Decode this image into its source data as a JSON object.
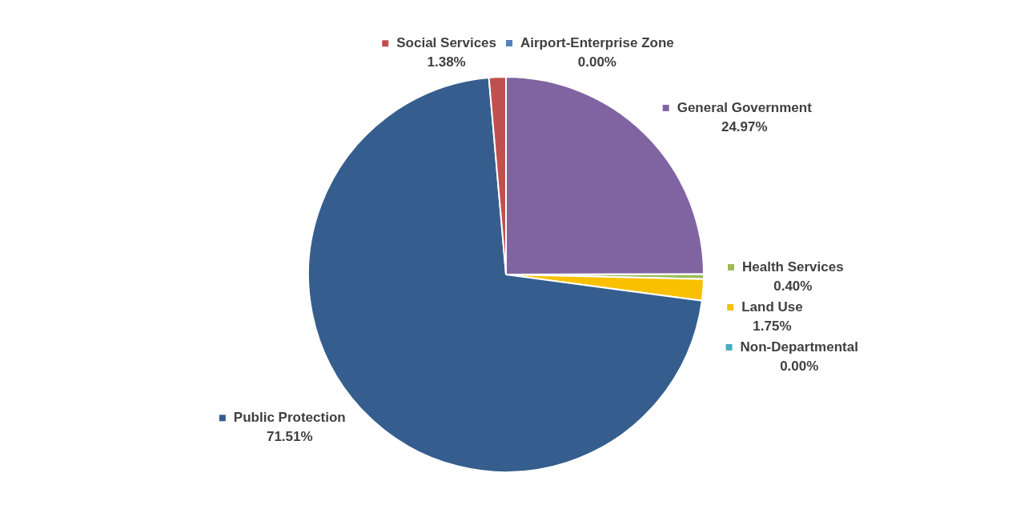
{
  "chart_data": {
    "type": "pie",
    "legend": "right",
    "categories": [
      "Airport-Enterprise Zone",
      "General Government",
      "Health Services",
      "Land Use",
      "Non-Departmental",
      "Public Protection",
      "Social Services"
    ],
    "values": [
      0.0,
      24.97,
      0.4,
      1.75,
      0.0,
      71.51,
      1.38
    ],
    "colors": [
      "#4f81bd",
      "#8064a2",
      "#9bbb59",
      "#f9c000",
      "#4bacc6",
      "#355e8e",
      "#c0504d"
    ],
    "value_labels": [
      "0.00%",
      "24.97%",
      "0.40%",
      "1.75%",
      "0.00%",
      "71.51%",
      "1.38%"
    ]
  }
}
